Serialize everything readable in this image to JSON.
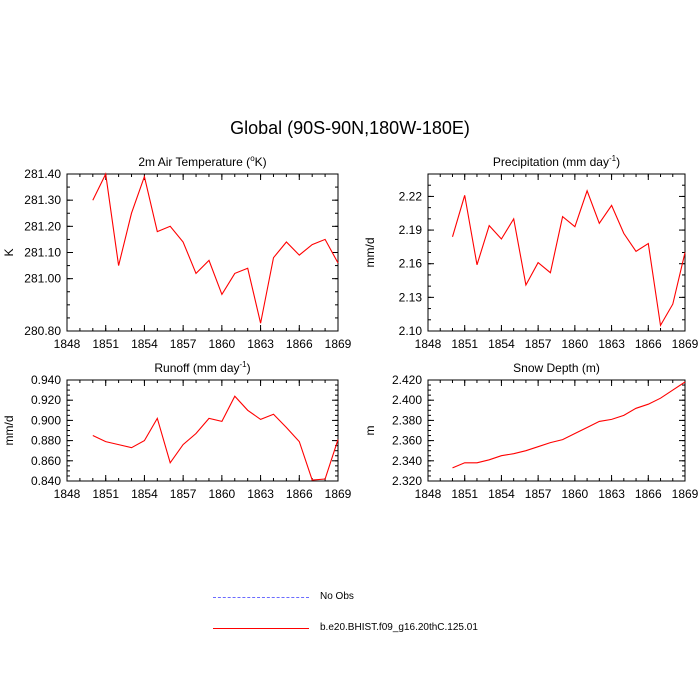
{
  "title": "Global (90S-90N,180W-180E)",
  "legend": [
    {
      "label": "No Obs",
      "color": "#6b6bff",
      "style": "dashed"
    },
    {
      "label": "b.e20.BHIST.f09_g16.20thC.125.01",
      "color": "#ff0000",
      "style": "solid"
    }
  ],
  "chart_data": [
    {
      "type": "line",
      "title": "2m Air Temperature (",
      "title_sup": "o",
      "title_after": "K)",
      "ylabel": "K",
      "xlim": [
        1848,
        1869
      ],
      "ylim": [
        280.8,
        281.4
      ],
      "xticks": [
        1848,
        1851,
        1854,
        1857,
        1860,
        1863,
        1866,
        1869
      ],
      "yticks": [
        "280.80",
        "281.00",
        "281.10",
        "281.20",
        "281.30",
        "281.40"
      ],
      "yticks_v": [
        280.8,
        281.0,
        281.1,
        281.2,
        281.3,
        281.4
      ],
      "y_minor_step": 0.05,
      "series": [
        {
          "name": "b.e20.BHIST.f09_g16.20thC.125.01",
          "color": "#ff0000",
          "x": [
            1850,
            1851,
            1852,
            1853,
            1854,
            1855,
            1856,
            1857,
            1858,
            1859,
            1860,
            1861,
            1862,
            1863,
            1864,
            1865,
            1866,
            1867,
            1868,
            1869
          ],
          "y": [
            281.3,
            281.4,
            281.05,
            281.25,
            281.39,
            281.18,
            281.2,
            281.14,
            281.02,
            281.07,
            280.94,
            281.02,
            281.04,
            280.83,
            281.08,
            281.14,
            281.09,
            281.13,
            281.15,
            281.06
          ]
        }
      ]
    },
    {
      "type": "line",
      "title": "Precipitation (mm day",
      "title_sup": "-1",
      "title_after": ")",
      "ylabel": "mm/d",
      "xlim": [
        1848,
        1869
      ],
      "ylim": [
        2.1,
        2.24
      ],
      "xticks": [
        1848,
        1851,
        1854,
        1857,
        1860,
        1863,
        1866,
        1869
      ],
      "yticks": [
        "2.10",
        "2.13",
        "2.16",
        "2.19",
        "2.22"
      ],
      "yticks_v": [
        2.1,
        2.13,
        2.16,
        2.19,
        2.22
      ],
      "y_minor_step": 0.01,
      "series": [
        {
          "name": "b.e20.BHIST.f09_g16.20thC.125.01",
          "color": "#ff0000",
          "x": [
            1850,
            1851,
            1852,
            1853,
            1854,
            1855,
            1856,
            1857,
            1858,
            1859,
            1860,
            1861,
            1862,
            1863,
            1864,
            1865,
            1866,
            1867,
            1868,
            1869
          ],
          "y": [
            2.184,
            2.221,
            2.159,
            2.194,
            2.182,
            2.2,
            2.141,
            2.161,
            2.152,
            2.202,
            2.193,
            2.225,
            2.196,
            2.212,
            2.187,
            2.171,
            2.178,
            2.105,
            2.124,
            2.17
          ]
        }
      ]
    },
    {
      "type": "line",
      "title": "Runoff (mm day",
      "title_sup": "-1",
      "title_after": ")",
      "ylabel": "mm/d",
      "xlim": [
        1848,
        1869
      ],
      "ylim": [
        0.84,
        0.94
      ],
      "xticks": [
        1848,
        1851,
        1854,
        1857,
        1860,
        1863,
        1866,
        1869
      ],
      "yticks": [
        "0.840",
        "0.860",
        "0.880",
        "0.900",
        "0.920",
        "0.940"
      ],
      "yticks_v": [
        0.84,
        0.86,
        0.88,
        0.9,
        0.92,
        0.94
      ],
      "y_minor_step": 0.005,
      "series": [
        {
          "name": "b.e20.BHIST.f09_g16.20thC.125.01",
          "color": "#ff0000",
          "x": [
            1850,
            1851,
            1852,
            1853,
            1854,
            1855,
            1856,
            1857,
            1858,
            1859,
            1860,
            1861,
            1862,
            1863,
            1864,
            1865,
            1866,
            1867,
            1868,
            1869
          ],
          "y": [
            0.885,
            0.879,
            0.876,
            0.873,
            0.88,
            0.902,
            0.858,
            0.876,
            0.887,
            0.902,
            0.899,
            0.924,
            0.91,
            0.901,
            0.906,
            0.893,
            0.879,
            0.841,
            0.842,
            0.881
          ]
        }
      ]
    },
    {
      "type": "line",
      "title": "Snow Depth (m)",
      "title_sup": "",
      "title_after": "",
      "ylabel": "m",
      "xlim": [
        1848,
        1869
      ],
      "ylim": [
        2.32,
        2.42
      ],
      "xticks": [
        1848,
        1851,
        1854,
        1857,
        1860,
        1863,
        1866,
        1869
      ],
      "yticks": [
        "2.320",
        "2.340",
        "2.360",
        "2.380",
        "2.400",
        "2.420"
      ],
      "yticks_v": [
        2.32,
        2.34,
        2.36,
        2.38,
        2.4,
        2.42
      ],
      "y_minor_step": 0.005,
      "series": [
        {
          "name": "b.e20.BHIST.f09_g16.20thC.125.01",
          "color": "#ff0000",
          "x": [
            1850,
            1851,
            1852,
            1853,
            1854,
            1855,
            1856,
            1857,
            1858,
            1859,
            1860,
            1861,
            1862,
            1863,
            1864,
            1865,
            1866,
            1867,
            1868,
            1869
          ],
          "y": [
            2.333,
            2.338,
            2.338,
            2.341,
            2.345,
            2.347,
            2.35,
            2.354,
            2.358,
            2.361,
            2.367,
            2.373,
            2.379,
            2.381,
            2.385,
            2.392,
            2.396,
            2.402,
            2.41,
            2.418
          ]
        }
      ]
    }
  ]
}
